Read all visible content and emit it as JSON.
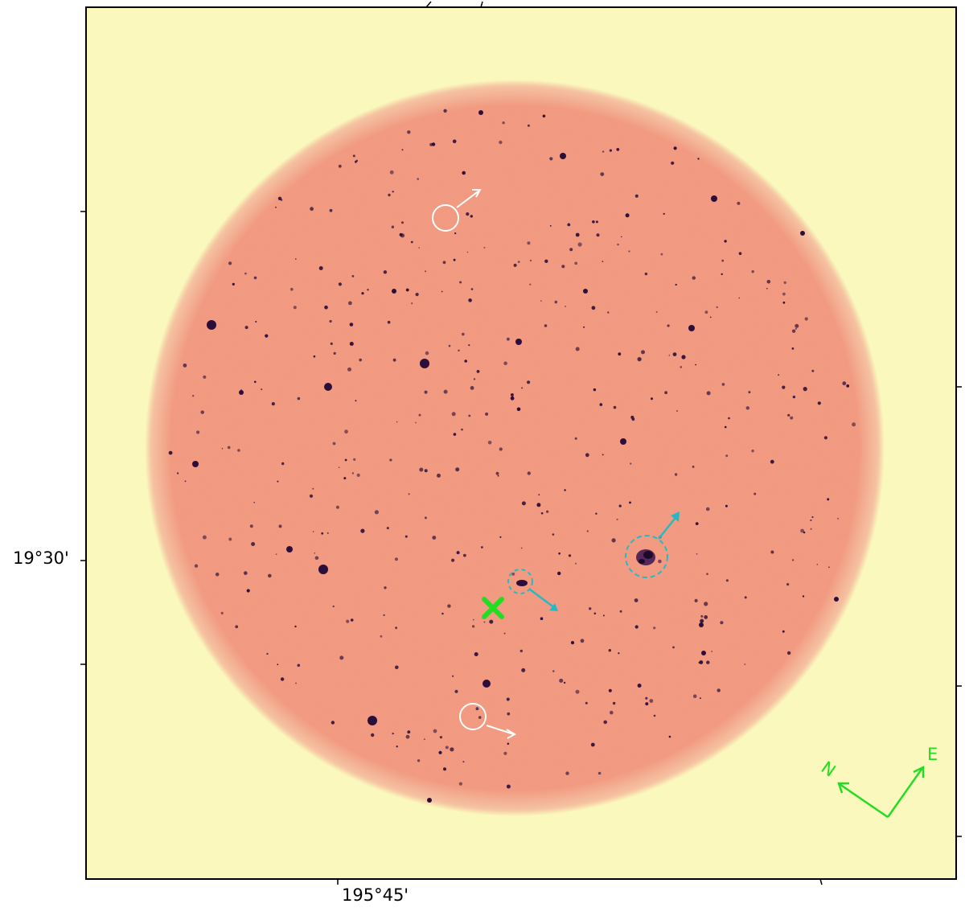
{
  "axes": {
    "dec_tick_label": "19°30'",
    "ra_tick_label": "195°45'"
  },
  "compass": {
    "north_label": "N",
    "east_label": "E",
    "color": "#22dd22"
  },
  "colors": {
    "background": "#faf8bd",
    "field": "#f29a7e",
    "source": "#2b0f3a",
    "highlight_white": "#ffffff",
    "highlight_cyan": "#2ab7c4",
    "target_marker": "#22dd22"
  },
  "markers": {
    "white_circles": 2,
    "cyan_dashed_circles": 2,
    "target_cross": 1
  }
}
